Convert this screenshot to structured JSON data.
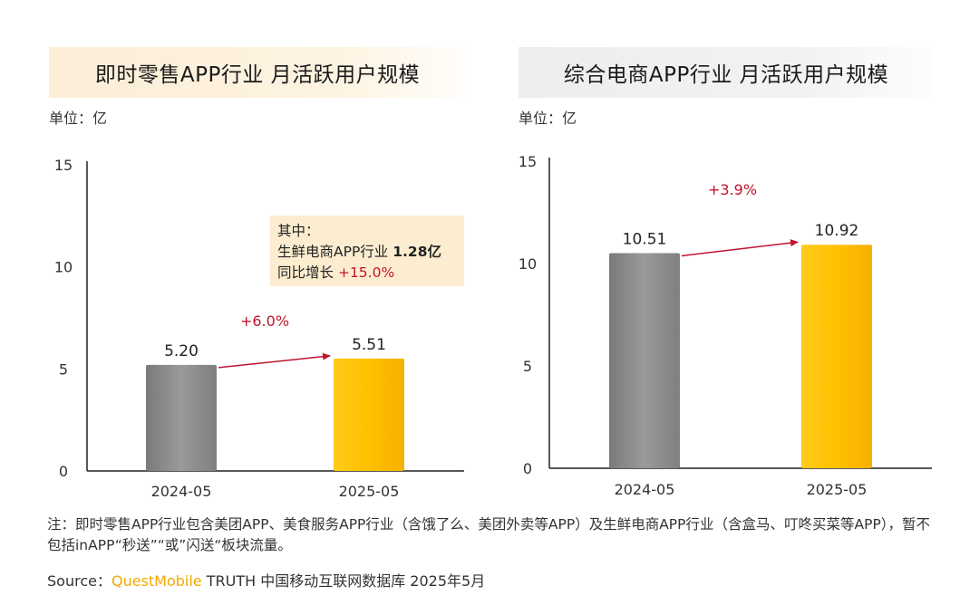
{
  "panels": {
    "left": {
      "title": "即时零售APP行业 月活跃用户规模",
      "unit": "单位：亿"
    },
    "right": {
      "title": "综合电商APP行业 月活跃用户规模",
      "unit": "单位：亿"
    }
  },
  "callout": {
    "line1": "其中：",
    "line2_label": "生鲜电商APP行业",
    "line2_value": "1.28亿",
    "line3_label": "同比增长",
    "line3_value": "+15.0%"
  },
  "note": "注：即时零售APP行业包含美团APP、美食服务APP行业（含饿了么、美团外卖等APP）及生鲜电商APP行业（含盒马、叮咚买菜等APP），暂不包括inAPP“秒送”“或”闪送“板块流量。",
  "source": {
    "prefix": "Source：",
    "brand": "QuestMobile",
    "suffix": " TRUTH 中国移动互联网数据库 2025年5月"
  },
  "colors": {
    "bar_2024": "#8a8a8a",
    "bar_2025": "#fbbf00",
    "arrow": "#c0142c",
    "growth_text": "#c0142c",
    "axis": "#222222"
  },
  "chart_data": [
    {
      "type": "bar",
      "title": "即时零售APP行业 月活跃用户规模",
      "ylabel": "单位：亿",
      "categories": [
        "2024-05",
        "2025-05"
      ],
      "values": [
        5.2,
        5.51
      ],
      "value_labels": [
        "5.20",
        "5.51"
      ],
      "growth_label": "+6.0%",
      "ylim": [
        0,
        15
      ],
      "yticks": [
        0,
        5,
        10,
        15
      ],
      "grid": false
    },
    {
      "type": "bar",
      "title": "综合电商APP行业 月活跃用户规模",
      "ylabel": "单位：亿",
      "categories": [
        "2024-05",
        "2025-05"
      ],
      "values": [
        10.51,
        10.92
      ],
      "value_labels": [
        "10.51",
        "10.92"
      ],
      "growth_label": "+3.9%",
      "ylim": [
        0,
        15
      ],
      "yticks": [
        0,
        5,
        10,
        15
      ],
      "grid": false
    }
  ]
}
